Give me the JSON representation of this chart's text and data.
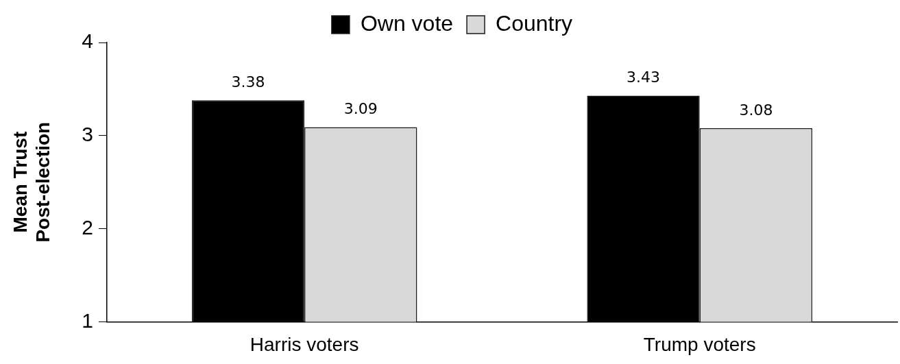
{
  "chart_data": {
    "type": "bar",
    "ylabel": "Mean Trust\nPost-election",
    "categories": [
      "Harris voters",
      "Trump voters"
    ],
    "series": [
      {
        "name": "Own vote",
        "color": "#000000",
        "values": [
          3.38,
          3.43
        ]
      },
      {
        "name": "Country",
        "color": "#d9d9d9",
        "values": [
          3.09,
          3.08
        ]
      }
    ],
    "ylim": [
      1,
      4
    ],
    "yticks": [
      1,
      2,
      3,
      4
    ],
    "grid": false,
    "legend": "top",
    "data_labels": true
  }
}
